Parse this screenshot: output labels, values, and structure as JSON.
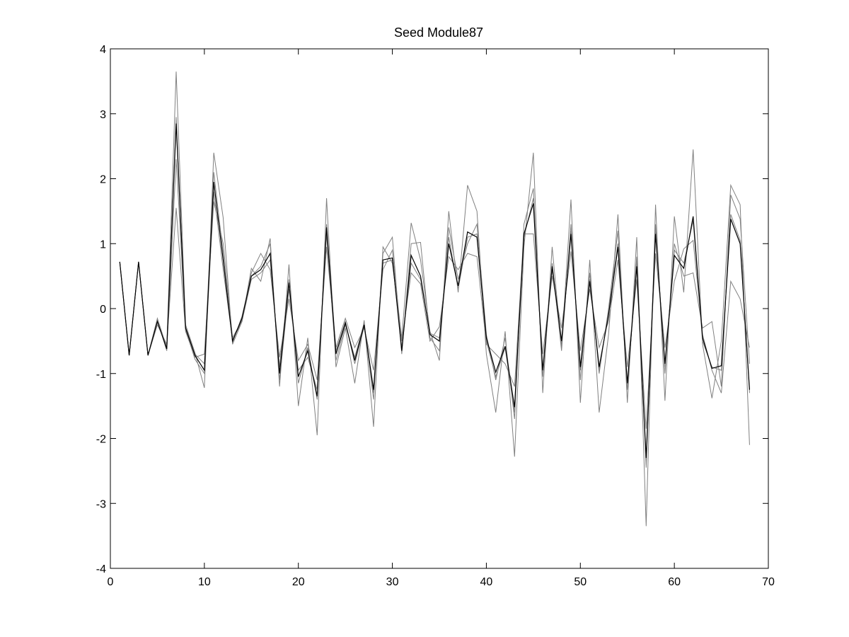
{
  "chart_data": {
    "type": "line",
    "title": "Seed Module87",
    "xlabel": "",
    "ylabel": "",
    "xlim": [
      0,
      70
    ],
    "ylim": [
      -4,
      4
    ],
    "xticks": [
      0,
      10,
      20,
      30,
      40,
      50,
      60,
      70
    ],
    "yticks": [
      -4,
      -3,
      -2,
      -1,
      0,
      1,
      2,
      3,
      4
    ],
    "grid": false,
    "legend": "none",
    "colors": {
      "seed": "#000000",
      "members": "#808080"
    },
    "x": [
      1,
      2,
      3,
      4,
      5,
      6,
      7,
      8,
      9,
      10,
      11,
      12,
      13,
      14,
      15,
      16,
      17,
      18,
      19,
      20,
      21,
      22,
      23,
      24,
      25,
      26,
      27,
      28,
      29,
      30,
      31,
      32,
      33,
      34,
      35,
      36,
      37,
      38,
      39,
      40,
      41,
      42,
      43,
      44,
      45,
      46,
      47,
      48,
      49,
      50,
      51,
      52,
      53,
      54,
      55,
      56,
      57,
      58,
      59,
      60,
      61,
      62,
      63,
      64,
      65,
      66,
      67,
      68
    ],
    "series": [
      {
        "role": "seed",
        "values": [
          0.72,
          -0.72,
          0.72,
          -0.72,
          -0.2,
          -0.62,
          2.85,
          -0.3,
          -0.72,
          -0.95,
          1.95,
          0.75,
          -0.5,
          -0.15,
          0.5,
          0.6,
          0.85,
          -1.0,
          0.4,
          -1.05,
          -0.65,
          -1.35,
          1.25,
          -0.7,
          -0.22,
          -0.8,
          -0.25,
          -1.25,
          0.75,
          0.78,
          -0.65,
          0.82,
          0.5,
          -0.4,
          -0.5,
          1.0,
          0.35,
          1.18,
          1.1,
          -0.45,
          -0.98,
          -0.58,
          -1.52,
          1.15,
          1.62,
          -0.95,
          0.65,
          -0.5,
          1.15,
          -0.9,
          0.42,
          -0.9,
          -0.1,
          0.95,
          -1.15,
          0.65,
          -2.3,
          1.15,
          -0.85,
          0.82,
          0.62,
          1.42,
          -0.45,
          -0.92,
          -0.88,
          1.38,
          1.0,
          -1.25
        ]
      },
      {
        "role": "member",
        "values": [
          0.72,
          -0.72,
          0.72,
          -0.72,
          -0.15,
          -0.6,
          3.65,
          -0.25,
          -0.68,
          -1.22,
          2.4,
          1.4,
          -0.55,
          -0.2,
          0.62,
          0.42,
          1.08,
          -1.2,
          0.68,
          -1.5,
          -0.45,
          -1.95,
          1.7,
          -0.9,
          -0.3,
          -1.15,
          -0.18,
          -1.82,
          0.95,
          0.7,
          -0.45,
          1.32,
          0.75,
          -0.35,
          -0.8,
          1.5,
          0.25,
          1.9,
          1.5,
          -0.7,
          -1.6,
          -0.35,
          -2.28,
          0.95,
          2.4,
          -1.3,
          0.95,
          -0.6,
          1.68,
          -1.45,
          0.75,
          -1.6,
          -0.4,
          1.45,
          -1.45,
          1.1,
          -3.35,
          1.6,
          -1.42,
          1.42,
          0.25,
          2.45,
          -0.55,
          -1.38,
          -0.5,
          1.9,
          1.6,
          -2.1
        ]
      },
      {
        "role": "member",
        "values": [
          0.72,
          -0.72,
          0.72,
          -0.72,
          -0.25,
          -0.55,
          1.55,
          -0.35,
          -0.75,
          -0.7,
          1.65,
          1.0,
          -0.45,
          -0.18,
          0.55,
          0.85,
          0.6,
          -0.75,
          0.15,
          -0.8,
          -0.55,
          -1.1,
          0.95,
          -0.6,
          -0.15,
          -0.6,
          -0.3,
          -0.95,
          0.6,
          0.9,
          -0.5,
          0.55,
          0.38,
          -0.5,
          -0.28,
          0.8,
          0.6,
          0.85,
          0.8,
          -0.55,
          -0.7,
          -0.85,
          -1.2,
          1.15,
          1.15,
          -0.7,
          0.5,
          -0.3,
          0.88,
          -0.65,
          0.3,
          -0.6,
          -0.2,
          0.75,
          -0.9,
          0.45,
          -1.85,
          0.85,
          -0.6,
          0.42,
          0.92,
          1.05,
          -0.4,
          -0.95,
          -1.3,
          0.42,
          0.15,
          -0.6
        ]
      },
      {
        "role": "member",
        "values": [
          0.72,
          -0.72,
          0.72,
          -0.72,
          -0.18,
          -0.65,
          2.3,
          -0.28,
          -0.7,
          -0.85,
          2.1,
          0.85,
          -0.52,
          -0.12,
          0.5,
          0.65,
          1.0,
          -1.1,
          0.3,
          -0.95,
          -0.75,
          -1.25,
          1.15,
          -0.8,
          -0.25,
          -0.75,
          -0.22,
          -1.4,
          0.85,
          1.1,
          -0.7,
          1.0,
          1.02,
          -0.45,
          -0.65,
          1.25,
          0.45,
          1.0,
          1.3,
          -0.4,
          -1.1,
          -0.45,
          -1.7,
          1.3,
          1.85,
          -1.05,
          0.7,
          -0.65,
          1.3,
          -1.1,
          0.55,
          -1.0,
          0.0,
          1.2,
          -1.25,
          0.8,
          -2.45,
          1.3,
          -1.0,
          1.0,
          0.5,
          0.55,
          -0.3,
          -0.2,
          -1.2,
          1.75,
          1.38,
          -0.85
        ]
      },
      {
        "role": "member",
        "values": [
          0.72,
          -0.72,
          0.72,
          -0.72,
          -0.2,
          -0.6,
          2.95,
          -0.32,
          -0.78,
          -1.0,
          1.8,
          0.6,
          -0.48,
          -0.2,
          0.45,
          0.55,
          0.75,
          -0.9,
          0.45,
          -1.15,
          -0.6,
          -1.4,
          1.3,
          -0.65,
          -0.2,
          -0.85,
          -0.28,
          -1.3,
          0.7,
          0.75,
          -0.6,
          0.7,
          0.45,
          -0.38,
          -0.45,
          1.1,
          0.3,
          1.1,
          1.15,
          -0.5,
          -1.05,
          -0.6,
          -1.6,
          1.1,
          1.7,
          -1.0,
          0.6,
          -0.55,
          1.2,
          -0.95,
          0.45,
          -0.95,
          -0.05,
          1.0,
          -1.2,
          0.7,
          -2.4,
          1.2,
          -0.9,
          0.9,
          0.7,
          1.35,
          -0.5,
          -0.9,
          -0.95,
          1.45,
          1.05,
          -1.3
        ]
      }
    ]
  }
}
